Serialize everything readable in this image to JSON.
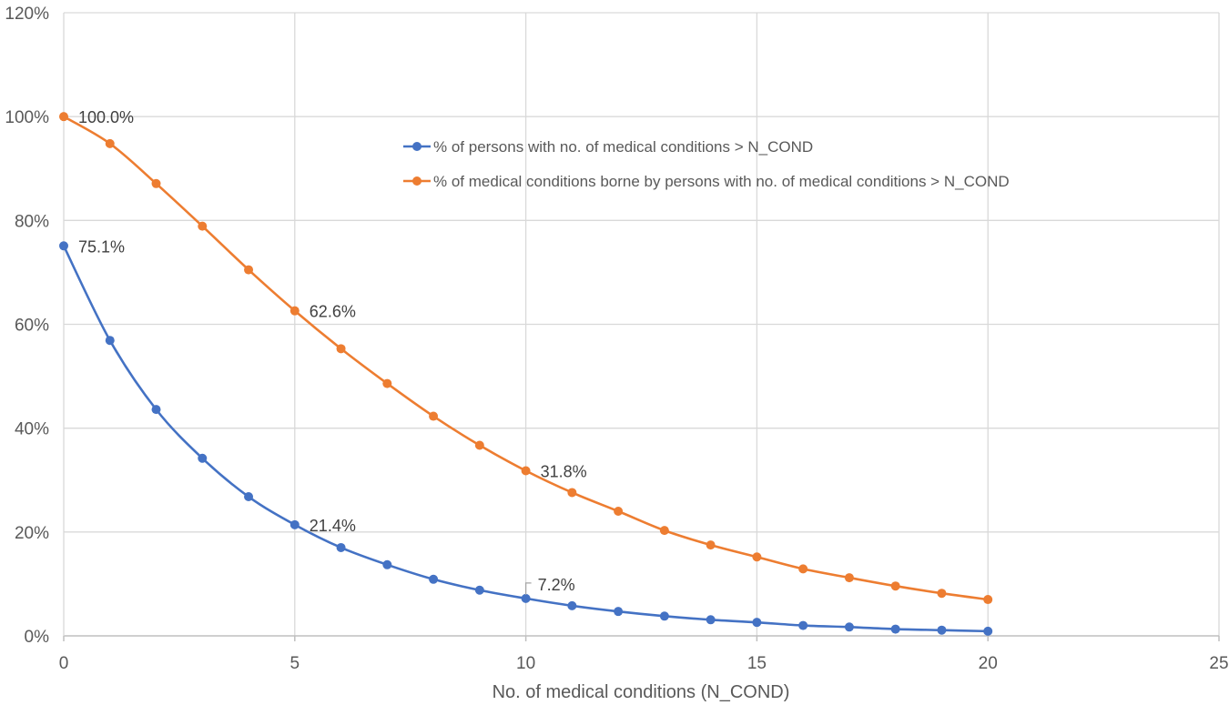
{
  "chart_data": {
    "type": "line",
    "title": "",
    "xlabel": "No. of medical conditions (N_COND)",
    "ylabel": "",
    "xlim": [
      0,
      25
    ],
    "ylim": [
      0,
      120
    ],
    "x_ticks": [
      0,
      5,
      10,
      15,
      20,
      25
    ],
    "x_tick_labels": [
      "0",
      "5",
      "10",
      "15",
      "20",
      "25"
    ],
    "y_ticks": [
      0,
      20,
      40,
      60,
      80,
      100,
      120
    ],
    "y_tick_labels": [
      "0%",
      "20%",
      "40%",
      "60%",
      "80%",
      "100%",
      "120%"
    ],
    "grid": true,
    "legend_position": "top-center-right",
    "x": [
      0,
      1,
      2,
      3,
      4,
      5,
      6,
      7,
      8,
      9,
      10,
      11,
      12,
      13,
      14,
      15,
      16,
      17,
      18,
      19,
      20
    ],
    "series": [
      {
        "name": "% of persons with no. of medical conditions > N_COND",
        "color": "#4472c4",
        "values": [
          75.1,
          56.9,
          43.6,
          34.2,
          26.8,
          21.4,
          17.0,
          13.7,
          10.9,
          8.8,
          7.2,
          5.8,
          4.7,
          3.8,
          3.1,
          2.6,
          2.0,
          1.7,
          1.3,
          1.1,
          0.9
        ],
        "labels": [
          {
            "x": 0,
            "text": "75.1%"
          },
          {
            "x": 5,
            "text": "21.4%"
          },
          {
            "x": 10,
            "text": "7.2%",
            "leader": true
          }
        ]
      },
      {
        "name": "% of medical conditions borne by persons with no. of medical conditions > N_COND",
        "color": "#ed7d31",
        "values": [
          100.0,
          94.8,
          87.1,
          78.9,
          70.5,
          62.6,
          55.3,
          48.6,
          42.3,
          36.7,
          31.8,
          27.6,
          24.0,
          20.3,
          17.5,
          15.2,
          12.9,
          11.2,
          9.6,
          8.2,
          7.0
        ],
        "labels": [
          {
            "x": 0,
            "text": "100.0%"
          },
          {
            "x": 5,
            "text": "62.6%"
          },
          {
            "x": 10,
            "text": "31.8%"
          }
        ]
      }
    ]
  }
}
